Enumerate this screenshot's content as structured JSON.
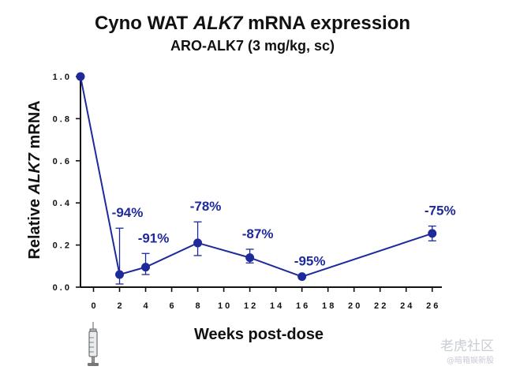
{
  "chart_data": {
    "type": "line",
    "title_pre": "Cyno WAT ",
    "title_gene": "ALK7",
    "title_post": " mRNA expression",
    "subtitle": "ARO-ALK7 (3 mg/kg, sc)",
    "xlabel": "Weeks post-dose",
    "ylabel_pre": "Relative ",
    "ylabel_gene": "ALK7",
    "ylabel_post": " mRNA",
    "xlim": [
      -1,
      26.5
    ],
    "ylim": [
      0,
      1.0
    ],
    "x_ticks": [
      0,
      2,
      4,
      6,
      8,
      10,
      12,
      14,
      16,
      18,
      20,
      22,
      24,
      26
    ],
    "x_tick_labels": [
      "0",
      "2",
      "4",
      "6",
      "8",
      "1 0",
      "1 2",
      "1 4",
      "1 6",
      "1 8",
      "2 0",
      "2 2",
      "2 4",
      "2 6"
    ],
    "y_ticks": [
      0.0,
      0.2,
      0.4,
      0.6,
      0.8,
      1.0
    ],
    "y_tick_labels": [
      "0 . 0",
      "0 . 2",
      "0 . 4",
      "0 . 6",
      "0 . 8",
      "1 . 0"
    ],
    "series": [
      {
        "name": "ARO-ALK7",
        "color": "#1f2a9a",
        "points": [
          {
            "x": -1,
            "y": 1.0,
            "err_low": 1.0,
            "err_high": 1.0,
            "label": ""
          },
          {
            "x": 2,
            "y": 0.06,
            "err_low": 0.015,
            "err_high": 0.28,
            "label": "-94%"
          },
          {
            "x": 4,
            "y": 0.095,
            "err_low": 0.06,
            "err_high": 0.16,
            "label": "-91%"
          },
          {
            "x": 8,
            "y": 0.21,
            "err_low": 0.15,
            "err_high": 0.31,
            "label": "-78%"
          },
          {
            "x": 12,
            "y": 0.14,
            "err_low": 0.115,
            "err_high": 0.18,
            "label": "-87%"
          },
          {
            "x": 16,
            "y": 0.05,
            "err_low": 0.05,
            "err_high": 0.05,
            "label": "-95%"
          },
          {
            "x": 26,
            "y": 0.255,
            "err_low": 0.22,
            "err_high": 0.29,
            "label": "-75%"
          }
        ]
      }
    ]
  },
  "watermark": {
    "brand": "老虎社区",
    "sub": "@暗箱娱新股"
  },
  "icons": {
    "dose_marker": "syringe-icon"
  }
}
